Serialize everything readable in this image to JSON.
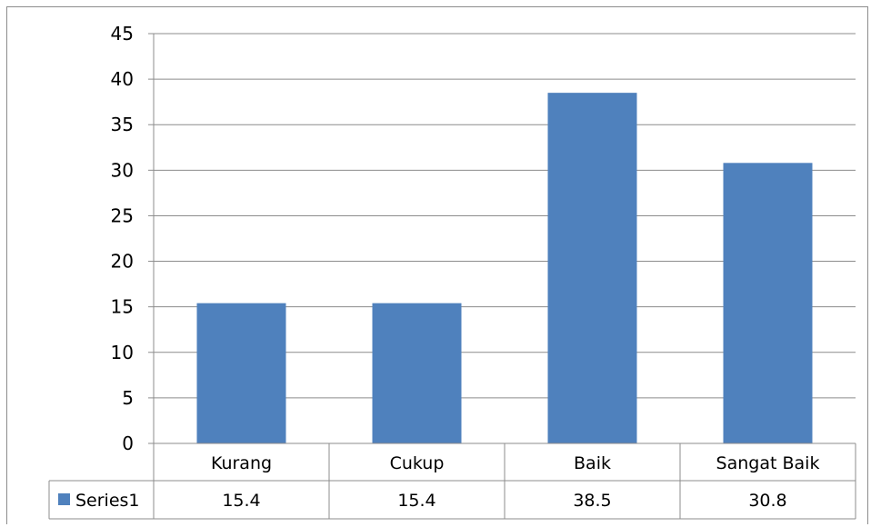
{
  "chart_data": {
    "type": "bar",
    "categories": [
      "Kurang",
      "Cukup",
      "Baik",
      "Sangat Baik"
    ],
    "series": [
      {
        "name": "Series1",
        "values": [
          15.4,
          15.4,
          38.5,
          30.8
        ],
        "color": "#4F81BD"
      }
    ],
    "data_table_values": [
      "15.4",
      "15.4",
      "38.5",
      "30.8"
    ],
    "ylim": [
      0,
      45
    ],
    "yticks": [
      0,
      5,
      10,
      15,
      20,
      25,
      30,
      35,
      40,
      45
    ],
    "grid": true,
    "legend": "data-table",
    "gridline_color": "#8c8c8c"
  }
}
